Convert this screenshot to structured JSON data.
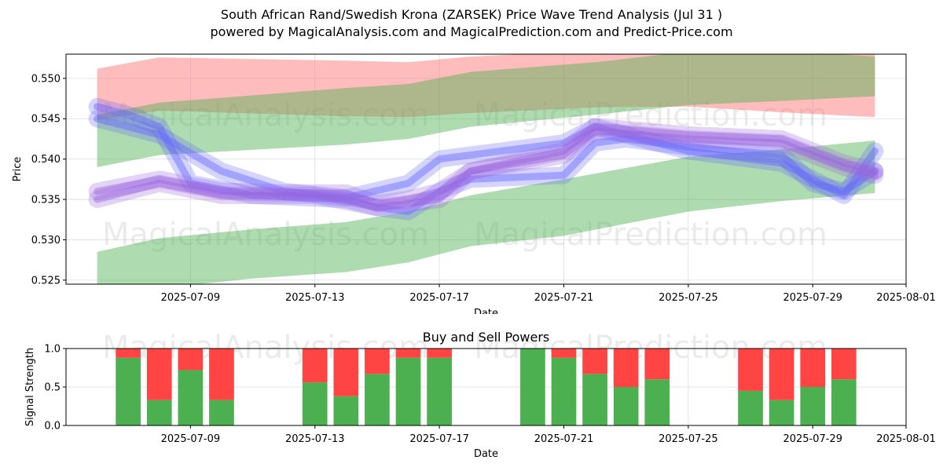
{
  "title_line1": "South African Rand/Swedish Krona (ZARSEK) Price Wave Trend Analysis (Jul 31 )",
  "title_line2": "powered by MagicalAnalysis.com and MagicalPrediction.com and Predict-Price.com",
  "watermarks": [
    "MagicalAnalysis.com",
    "MagicalPrediction.com"
  ],
  "colors": {
    "red_band": "#ff6b6b",
    "green_band": "#4caf50",
    "blue_wave": "#6666ff",
    "purple_wave": "#9966dd",
    "buy": "#4caf50",
    "sell": "#ff4444"
  },
  "chart_data": [
    {
      "type": "area",
      "title": "",
      "xlabel": "Date",
      "ylabel": "Price",
      "xlim": [
        "2025-07-05",
        "2025-08-01"
      ],
      "ylim": [
        0.5245,
        0.553
      ],
      "x_ticks": [
        "2025-07-09",
        "2025-07-13",
        "2025-07-17",
        "2025-07-21",
        "2025-07-25",
        "2025-07-29",
        "2025-08-01"
      ],
      "y_ticks": [
        0.525,
        0.53,
        0.535,
        0.54,
        0.545,
        0.55
      ],
      "grid": true,
      "bands": [
        {
          "color": "red",
          "x": [
            "2025-07-06",
            "2025-07-08",
            "2025-07-14",
            "2025-07-16",
            "2025-07-18",
            "2025-07-22",
            "2025-07-25",
            "2025-07-28",
            "2025-07-31"
          ],
          "upper": [
            0.5512,
            0.5526,
            0.5522,
            0.552,
            0.5527,
            0.5534,
            0.5535,
            0.5535,
            0.5534
          ],
          "lower": [
            0.5448,
            0.546,
            0.5453,
            0.5452,
            0.5457,
            0.5464,
            0.5465,
            0.5458,
            0.5452
          ]
        },
        {
          "color": "green",
          "x": [
            "2025-07-06",
            "2025-07-08",
            "2025-07-14",
            "2025-07-16",
            "2025-07-18",
            "2025-07-22",
            "2025-07-25",
            "2025-07-28",
            "2025-07-31"
          ],
          "upper": [
            0.5455,
            0.547,
            0.5488,
            0.5493,
            0.5508,
            0.552,
            0.5533,
            0.5534,
            0.5527
          ],
          "lower": [
            0.539,
            0.5405,
            0.5418,
            0.5425,
            0.544,
            0.5455,
            0.5467,
            0.5472,
            0.5478
          ]
        },
        {
          "color": "green",
          "x": [
            "2025-07-06",
            "2025-07-08",
            "2025-07-11",
            "2025-07-14",
            "2025-07-16",
            "2025-07-18",
            "2025-07-21",
            "2025-07-25",
            "2025-07-28",
            "2025-07-31"
          ],
          "upper": [
            0.5285,
            0.5302,
            0.5313,
            0.5322,
            0.5335,
            0.5355,
            0.5375,
            0.5403,
            0.5412,
            0.5423
          ],
          "lower": [
            0.5225,
            0.524,
            0.5252,
            0.526,
            0.5272,
            0.5292,
            0.5305,
            0.5335,
            0.5348,
            0.5358
          ]
        }
      ],
      "series": [
        {
          "color": "blue",
          "x": [
            "2025-07-06",
            "2025-07-07",
            "2025-07-08",
            "2025-07-09",
            "2025-07-11",
            "2025-07-14",
            "2025-07-15",
            "2025-07-16",
            "2025-07-17",
            "2025-07-18",
            "2025-07-21",
            "2025-07-22",
            "2025-07-23",
            "2025-07-25",
            "2025-07-28",
            "2025-07-29",
            "2025-07-30",
            "2025-07-31"
          ],
          "y": [
            0.5465,
            0.5455,
            0.544,
            0.537,
            0.5355,
            0.535,
            0.534,
            0.5335,
            0.536,
            0.5375,
            0.538,
            0.542,
            0.5425,
            0.5415,
            0.5405,
            0.537,
            0.536,
            0.5385
          ]
        },
        {
          "color": "blue",
          "x": [
            "2025-07-06",
            "2025-07-08",
            "2025-07-10",
            "2025-07-12",
            "2025-07-14",
            "2025-07-16",
            "2025-07-17",
            "2025-07-19",
            "2025-07-21",
            "2025-07-22",
            "2025-07-25",
            "2025-07-28",
            "2025-07-30",
            "2025-07-31"
          ],
          "y": [
            0.545,
            0.543,
            0.5385,
            0.536,
            0.5352,
            0.537,
            0.54,
            0.541,
            0.542,
            0.544,
            0.541,
            0.5395,
            0.5355,
            0.541
          ]
        },
        {
          "color": "purple",
          "x": [
            "2025-07-06",
            "2025-07-08",
            "2025-07-10",
            "2025-07-12",
            "2025-07-14",
            "2025-07-15",
            "2025-07-16",
            "2025-07-17",
            "2025-07-18",
            "2025-07-21",
            "2025-07-22",
            "2025-07-25",
            "2025-07-28",
            "2025-07-30",
            "2025-07-31"
          ],
          "y": [
            0.536,
            0.5375,
            0.536,
            0.5358,
            0.5358,
            0.5345,
            0.535,
            0.536,
            0.5385,
            0.541,
            0.544,
            0.543,
            0.5425,
            0.5395,
            0.5385
          ]
        },
        {
          "color": "purple",
          "x": [
            "2025-07-06",
            "2025-07-08",
            "2025-07-10",
            "2025-07-13",
            "2025-07-15",
            "2025-07-17",
            "2025-07-18",
            "2025-07-21",
            "2025-07-22",
            "2025-07-25",
            "2025-07-28",
            "2025-07-30",
            "2025-07-31"
          ],
          "y": [
            0.535,
            0.537,
            0.5355,
            0.5355,
            0.534,
            0.535,
            0.5385,
            0.5405,
            0.5435,
            0.5425,
            0.542,
            0.539,
            0.538
          ]
        }
      ]
    },
    {
      "type": "bar",
      "title": "Buy and Sell Powers",
      "xlabel": "Date",
      "ylabel": "Signal Strength",
      "ylim": [
        0,
        1.0
      ],
      "y_ticks": [
        0.0,
        0.5,
        1.0
      ],
      "x_ticks": [
        "2025-07-09",
        "2025-07-13",
        "2025-07-17",
        "2025-07-21",
        "2025-07-25",
        "2025-07-29",
        "2025-08-01"
      ],
      "categories": [
        "2025-07-07",
        "2025-07-08",
        "2025-07-09",
        "2025-07-10",
        "2025-07-13",
        "2025-07-14",
        "2025-07-15",
        "2025-07-16",
        "2025-07-17",
        "2025-07-20",
        "2025-07-21",
        "2025-07-22",
        "2025-07-23",
        "2025-07-24",
        "2025-07-27",
        "2025-07-28",
        "2025-07-29",
        "2025-07-30"
      ],
      "series": [
        {
          "name": "Buy",
          "values": [
            0.88,
            0.33,
            0.72,
            0.33,
            0.56,
            0.38,
            0.67,
            0.88,
            0.88,
            1.0,
            0.88,
            0.67,
            0.5,
            0.6,
            0.45,
            0.33,
            0.5,
            0.6
          ]
        },
        {
          "name": "Sell",
          "values": [
            0.12,
            0.67,
            0.28,
            0.67,
            0.44,
            0.62,
            0.33,
            0.12,
            0.12,
            0.0,
            0.12,
            0.33,
            0.5,
            0.4,
            0.55,
            0.67,
            0.5,
            0.4
          ]
        }
      ]
    }
  ]
}
